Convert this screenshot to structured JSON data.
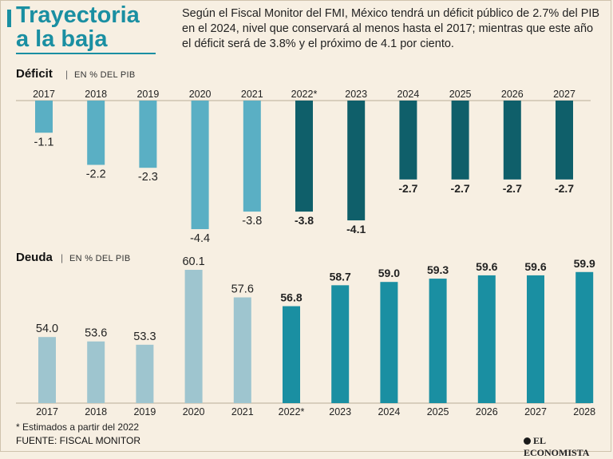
{
  "header": {
    "title_line1": "Trayectoria",
    "title_line2": "a la baja",
    "intro": "Según el Fiscal Monitor del FMI, México tendrá un déficit público de 2.7% del PIB en el 2024, nivel que conservará al menos hasta el 2017; mientras que este año el déficit será de 3.8% y el próximo de 4.1 por ciento."
  },
  "colors": {
    "title": "#1a8fa2",
    "deficit_hist": "#5aafc4",
    "deficit_proj": "#0f5f6a",
    "deuda_hist": "#9ec5cf",
    "deuda_proj": "#1a8fa2"
  },
  "chart_data": [
    {
      "type": "bar",
      "title": "Déficit",
      "unit": "EN % DEL PIB",
      "categories": [
        "2017",
        "2018",
        "2019",
        "2020",
        "2021",
        "2022*",
        "2023",
        "2024",
        "2025",
        "2026",
        "2027"
      ],
      "values": [
        -1.1,
        -2.2,
        -2.3,
        -4.4,
        -3.8,
        -3.8,
        -4.1,
        -2.7,
        -2.7,
        -2.7,
        -2.7
      ],
      "labels": [
        "-1.1",
        "-2.2",
        "-2.3",
        "-4.4",
        "-3.8",
        "-3.8",
        "-4.1",
        "-2.7",
        "-2.7",
        "-2.7",
        "-2.7"
      ],
      "projected_from_index": 5,
      "ylim": [
        -4.5,
        0
      ]
    },
    {
      "type": "bar",
      "title": "Deuda",
      "unit": "EN % DEL PIB",
      "categories": [
        "2017",
        "2018",
        "2019",
        "2020",
        "2021",
        "2022*",
        "2023",
        "2024",
        "2025",
        "2026",
        "2027",
        "2028"
      ],
      "values": [
        54.0,
        53.6,
        53.3,
        60.1,
        57.6,
        56.8,
        58.7,
        59.0,
        59.3,
        59.6,
        59.6,
        59.9
      ],
      "labels": [
        "54.0",
        "53.6",
        "53.3",
        "60.1",
        "57.6",
        "56.8",
        "58.7",
        "59.0",
        "59.3",
        "59.6",
        "59.6",
        "59.9"
      ],
      "projected_from_index": 5,
      "ylim": [
        48,
        60.1
      ]
    }
  ],
  "deficit": {
    "section_title": "Déficit",
    "separator": "|",
    "unit": "EN % DEL PIB"
  },
  "deuda": {
    "section_title": "Deuda",
    "separator": "|",
    "unit": "EN % DEL PIB"
  },
  "footer": {
    "footnote": "* Estimados a partir del 2022",
    "source": "FUENTE: FISCAL MONITOR",
    "brand": "EL ECONOMISTA"
  }
}
